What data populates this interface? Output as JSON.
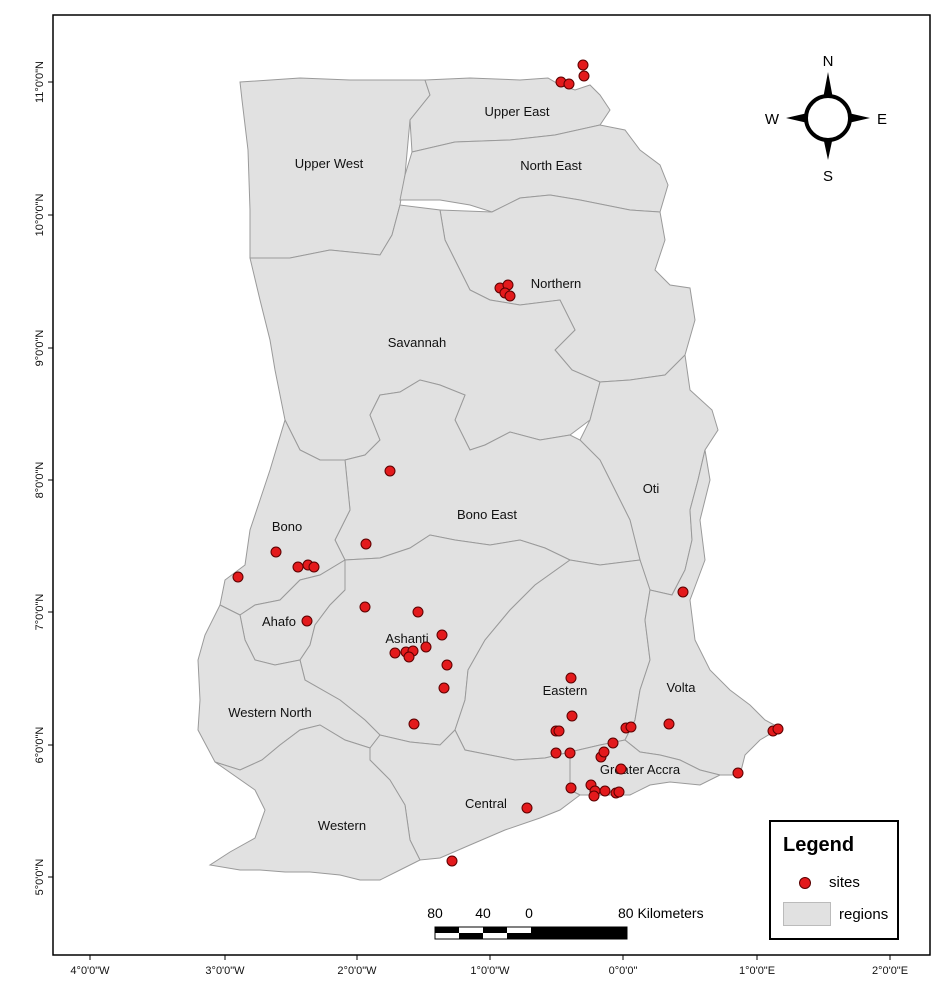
{
  "map": {
    "longitude_ticks": [
      "4°0'0\"W",
      "3°0'0\"W",
      "2°0'0\"W",
      "1°0'0\"W",
      "0°0'0\"",
      "1°0'0\"E",
      "2°0'0\"E"
    ],
    "latitude_ticks": [
      "11°0'0\"N",
      "10°0'0\"N",
      "9°0'0\"N",
      "8°0'0\"N",
      "7°0'0\"N",
      "6°0'0\"N",
      "5°0'0\"N"
    ],
    "regions": [
      "Upper East",
      "Upper West",
      "North East",
      "Northern",
      "Savannah",
      "Oti",
      "Bono East",
      "Bono",
      "Ahafo",
      "Ashanti",
      "Eastern",
      "Volta",
      "Western North",
      "Greater Accra",
      "Central",
      "Western"
    ],
    "colors": {
      "region_fill": "#e1e1e1",
      "boundary": "#9a9a9a",
      "site": "#e31a1c"
    }
  },
  "compass": {
    "n": "N",
    "s": "S",
    "e": "E",
    "w": "W"
  },
  "scale_bar": {
    "labels": [
      "80",
      "40",
      "0",
      "80 Kilometers"
    ]
  },
  "legend": {
    "title": "Legend",
    "items": [
      {
        "label": "sites"
      },
      {
        "label": "regions"
      }
    ]
  }
}
